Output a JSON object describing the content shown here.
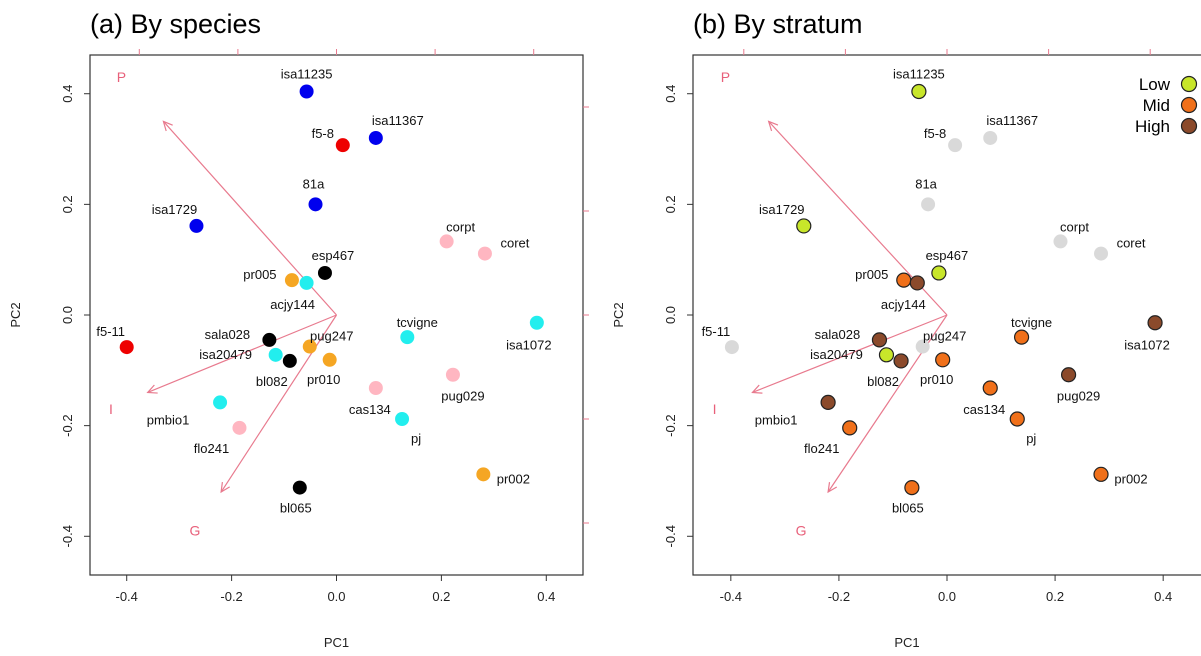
{
  "chart_data": [
    {
      "type": "scatter",
      "title": "(a) By species",
      "xlabel": "PC1",
      "ylabel": "PC2",
      "xlim": [
        -0.47,
        0.47
      ],
      "ylim": [
        -0.47,
        0.47
      ],
      "x_ticks": [
        "-0.4",
        "-0.2",
        "0.0",
        "0.2",
        "0.4"
      ],
      "y_ticks": [
        "-0.4",
        "-0.2",
        "0.0",
        "0.2",
        "0.4"
      ],
      "grid": false,
      "color_key": {
        "black": "#000000",
        "blue": "#0000ee",
        "red": "#ee0000",
        "cyan": "#22eeee",
        "orange": "#f5a623",
        "pink": "#ffb6c1"
      },
      "points": [
        {
          "label": "isa11235",
          "x": -0.057,
          "y": 0.404,
          "color": "blue"
        },
        {
          "label": "isa11367",
          "x": 0.075,
          "y": 0.32,
          "color": "blue"
        },
        {
          "label": "f5-8",
          "x": 0.012,
          "y": 0.307,
          "color": "red"
        },
        {
          "label": "81a",
          "x": -0.04,
          "y": 0.2,
          "color": "blue"
        },
        {
          "label": "isa1729",
          "x": -0.267,
          "y": 0.161,
          "color": "blue"
        },
        {
          "label": "corpt",
          "x": 0.21,
          "y": 0.133,
          "color": "pink"
        },
        {
          "label": "coret",
          "x": 0.283,
          "y": 0.111,
          "color": "pink"
        },
        {
          "label": "esp467",
          "x": -0.022,
          "y": 0.076,
          "color": "black"
        },
        {
          "label": "pr005",
          "x": -0.085,
          "y": 0.063,
          "color": "orange"
        },
        {
          "label": "acjy144",
          "x": -0.057,
          "y": 0.058,
          "color": "cyan"
        },
        {
          "label": "isa1072",
          "x": 0.382,
          "y": -0.014,
          "color": "cyan"
        },
        {
          "label": "f5-11",
          "x": -0.4,
          "y": -0.058,
          "color": "red"
        },
        {
          "label": "sala028",
          "x": -0.128,
          "y": -0.045,
          "color": "black"
        },
        {
          "label": "tcvigne",
          "x": 0.135,
          "y": -0.04,
          "color": "cyan"
        },
        {
          "label": "pug247",
          "x": -0.051,
          "y": -0.057,
          "color": "orange"
        },
        {
          "label": "isa20479",
          "x": -0.116,
          "y": -0.072,
          "color": "cyan"
        },
        {
          "label": "bl082",
          "x": -0.089,
          "y": -0.083,
          "color": "black"
        },
        {
          "label": "pr010",
          "x": -0.013,
          "y": -0.081,
          "color": "orange"
        },
        {
          "label": "pug029",
          "x": 0.222,
          "y": -0.108,
          "color": "pink"
        },
        {
          "label": "cas134",
          "x": 0.075,
          "y": -0.132,
          "color": "pink"
        },
        {
          "label": "pmbio1",
          "x": -0.222,
          "y": -0.158,
          "color": "cyan"
        },
        {
          "label": "pj",
          "x": 0.125,
          "y": -0.188,
          "color": "cyan"
        },
        {
          "label": "flo241",
          "x": -0.185,
          "y": -0.204,
          "color": "pink"
        },
        {
          "label": "pr002",
          "x": 0.28,
          "y": -0.288,
          "color": "orange"
        },
        {
          "label": "bl065",
          "x": -0.07,
          "y": -0.312,
          "color": "black"
        }
      ],
      "vectors": [
        {
          "label": "P",
          "x": -0.33,
          "y": 0.35
        },
        {
          "label": "I",
          "x": -0.36,
          "y": -0.14
        },
        {
          "label": "G",
          "x": -0.22,
          "y": -0.32
        }
      ]
    },
    {
      "type": "scatter",
      "title": "(b) By stratum",
      "xlabel": "PC1",
      "ylabel": "PC2",
      "xlim": [
        -0.47,
        0.47
      ],
      "ylim": [
        -0.47,
        0.47
      ],
      "x_ticks": [
        "-0.4",
        "-0.2",
        "0.0",
        "0.2",
        "0.4"
      ],
      "y_ticks": [
        "-0.4",
        "-0.2",
        "0.0",
        "0.2",
        "0.4"
      ],
      "grid": false,
      "legend": {
        "placement": "top-right",
        "entries": [
          {
            "name": "Low",
            "color": "#c8e62a"
          },
          {
            "name": "Mid",
            "color": "#f0701a"
          },
          {
            "name": "High",
            "color": "#8b4a2b"
          }
        ]
      },
      "color_key": {
        "Low": "#c8e62a",
        "Mid": "#f0701a",
        "High": "#8b4a2b",
        "none": "#d9d9d9"
      },
      "points": [
        {
          "label": "isa11235",
          "x": -0.052,
          "y": 0.404,
          "stratum": "Low"
        },
        {
          "label": "isa11367",
          "x": 0.08,
          "y": 0.32,
          "stratum": "none"
        },
        {
          "label": "f5-8",
          "x": 0.015,
          "y": 0.307,
          "stratum": "none"
        },
        {
          "label": "81a",
          "x": -0.035,
          "y": 0.2,
          "stratum": "none"
        },
        {
          "label": "isa1729",
          "x": -0.265,
          "y": 0.161,
          "stratum": "Low"
        },
        {
          "label": "corpt",
          "x": 0.21,
          "y": 0.133,
          "stratum": "none"
        },
        {
          "label": "coret",
          "x": 0.285,
          "y": 0.111,
          "stratum": "none"
        },
        {
          "label": "esp467",
          "x": -0.015,
          "y": 0.076,
          "stratum": "Low"
        },
        {
          "label": "pr005",
          "x": -0.08,
          "y": 0.063,
          "stratum": "Mid"
        },
        {
          "label": "acjy144",
          "x": -0.055,
          "y": 0.058,
          "stratum": "High"
        },
        {
          "label": "isa1072",
          "x": 0.385,
          "y": -0.014,
          "stratum": "High"
        },
        {
          "label": "f5-11",
          "x": -0.398,
          "y": -0.058,
          "stratum": "none"
        },
        {
          "label": "sala028",
          "x": -0.125,
          "y": -0.045,
          "stratum": "High"
        },
        {
          "label": "tcvigne",
          "x": 0.138,
          "y": -0.04,
          "stratum": "Mid"
        },
        {
          "label": "pug247",
          "x": -0.045,
          "y": -0.057,
          "stratum": "none"
        },
        {
          "label": "isa20479",
          "x": -0.112,
          "y": -0.072,
          "stratum": "Low"
        },
        {
          "label": "bl082",
          "x": -0.085,
          "y": -0.083,
          "stratum": "High"
        },
        {
          "label": "pr010",
          "x": -0.008,
          "y": -0.081,
          "stratum": "Mid"
        },
        {
          "label": "pug029",
          "x": 0.225,
          "y": -0.108,
          "stratum": "High"
        },
        {
          "label": "cas134",
          "x": 0.08,
          "y": -0.132,
          "stratum": "Mid"
        },
        {
          "label": "pmbio1",
          "x": -0.22,
          "y": -0.158,
          "stratum": "High"
        },
        {
          "label": "pj",
          "x": 0.13,
          "y": -0.188,
          "stratum": "Mid"
        },
        {
          "label": "flo241",
          "x": -0.18,
          "y": -0.204,
          "stratum": "Mid"
        },
        {
          "label": "pr002",
          "x": 0.285,
          "y": -0.288,
          "stratum": "Mid"
        },
        {
          "label": "bl065",
          "x": -0.065,
          "y": -0.312,
          "stratum": "Mid"
        }
      ],
      "vectors": [
        {
          "label": "P",
          "x": -0.33,
          "y": 0.35
        },
        {
          "label": "I",
          "x": -0.36,
          "y": -0.14
        },
        {
          "label": "G",
          "x": -0.22,
          "y": -0.32
        }
      ]
    }
  ]
}
